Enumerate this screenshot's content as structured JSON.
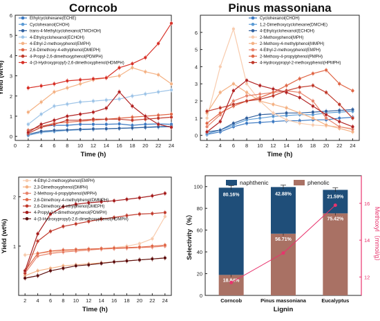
{
  "figure": {},
  "chart_data": [
    {
      "type": "line",
      "title": "Corncob",
      "xlabel": "Time (h)",
      "ylabel": "Yield (wt%)",
      "xlim": [
        0,
        24
      ],
      "ylim": [
        -0.2,
        6
      ],
      "x_ticks": [
        0,
        2,
        4,
        6,
        8,
        10,
        12,
        14,
        16,
        18,
        20,
        22,
        24
      ],
      "y_ticks": [
        0,
        1,
        2,
        3,
        4,
        5,
        6
      ],
      "x": [
        2,
        4,
        6,
        8,
        10,
        12,
        14,
        16,
        18,
        20,
        22,
        24
      ],
      "legend_position": "top-left",
      "series": [
        {
          "name": "Ethylcyclohexane(ECHE)",
          "color": "#3a78c2",
          "values": [
            0.3,
            0.5,
            0.55,
            0.55,
            0.6,
            0.6,
            0.6,
            0.62,
            0.55,
            0.6,
            0.62,
            0.6
          ]
        },
        {
          "name": "Cyclohexanol(CHOH)",
          "color": "#5b9bd5",
          "values": [
            0.05,
            0.2,
            0.25,
            0.3,
            0.33,
            0.35,
            0.38,
            0.4,
            0.42,
            0.44,
            0.46,
            0.48
          ]
        },
        {
          "name": "trans-4-Methylcyclohexanol(TMCHOH)",
          "color": "#2f5f9e",
          "values": [
            0.1,
            0.25,
            0.3,
            0.32,
            0.35,
            0.37,
            0.38,
            0.4,
            0.42,
            0.45,
            0.48,
            0.5
          ]
        },
        {
          "name": "4-Ethylcyclohexanol(ECHOH)",
          "color": "#9fc5e8",
          "values": [
            0.6,
            1.1,
            1.5,
            1.6,
            1.7,
            1.75,
            1.8,
            1.85,
            2.0,
            2.1,
            2.2,
            2.3
          ]
        },
        {
          "name": "4-Ethyl-2-methoxyphenol(EMPH)",
          "color": "#f4b183",
          "values": [
            1.2,
            1.7,
            2.2,
            2.4,
            2.6,
            2.8,
            2.9,
            3.0,
            3.4,
            3.2,
            3.05,
            2.6
          ]
        },
        {
          "name": "2,6-Dimethoxy-4-ethylphenol(DMEPH)",
          "color": "#e06646",
          "values": [
            0.3,
            0.5,
            0.65,
            0.7,
            0.75,
            0.8,
            0.85,
            0.9,
            0.95,
            1.0,
            1.05,
            1.1
          ]
        },
        {
          "name": "4-Propyl-2,6-dimethoxyphenol(PDMPH)",
          "color": "#c0392b",
          "values": [
            0.15,
            0.45,
            0.6,
            0.8,
            0.8,
            0.85,
            0.85,
            0.85,
            0.8,
            0.85,
            0.9,
            0.95
          ]
        },
        {
          "name": "4-(3-Hydroxypropyl)-2,6-dimethoxyphenol(HDMPH)",
          "color": "#d73027",
          "values": [
            2.4,
            2.5,
            2.6,
            2.75,
            2.8,
            2.85,
            2.9,
            3.4,
            3.6,
            3.9,
            4.6,
            5.6
          ]
        },
        {
          "name": "",
          "color": "#b22222",
          "values": [
            0.2,
            0.6,
            0.8,
            1.0,
            1.1,
            1.2,
            1.4,
            2.2,
            1.5,
            1.0,
            0.6,
            0.45
          ]
        }
      ]
    },
    {
      "type": "line",
      "title": "Pinus massoniana",
      "xlabel": "Time (h)",
      "ylabel": "",
      "xlim": [
        1,
        25
      ],
      "ylim": [
        -0.3,
        7
      ],
      "x_ticks": [
        2,
        4,
        6,
        8,
        10,
        12,
        14,
        16,
        18,
        20,
        22,
        24
      ],
      "y_ticks": [
        0,
        1,
        2,
        3,
        4,
        5,
        6
      ],
      "x": [
        2,
        4,
        6,
        8,
        10,
        12,
        14,
        16,
        18,
        20,
        22,
        24
      ],
      "legend_position": "top-right",
      "series": [
        {
          "name": "Cyclohexanol(CHOH)",
          "color": "#3a78c2",
          "values": [
            0.05,
            0.2,
            0.5,
            0.7,
            0.75,
            0.8,
            0.85,
            0.85,
            0.9,
            0.9,
            1.0,
            1.05
          ]
        },
        {
          "name": "1,2-Dimethoxycyclohexane(DMCHE)",
          "color": "#5b9bd5",
          "values": [
            0.1,
            0.3,
            0.6,
            0.9,
            1.0,
            1.1,
            1.15,
            1.2,
            1.2,
            1.3,
            1.35,
            1.4
          ]
        },
        {
          "name": "4-Ethylcyclohexanol(ECHOH)",
          "color": "#2f5f9e",
          "values": [
            0.2,
            0.3,
            0.7,
            1.0,
            1.2,
            1.25,
            1.3,
            1.3,
            1.35,
            1.4,
            1.45,
            1.5
          ]
        },
        {
          "name": "2-Methoxyphenol(MPH)",
          "color": "#f8cbad",
          "values": [
            1.0,
            4.0,
            6.2,
            3.0,
            2.0,
            1.3,
            0.9,
            0.7,
            0.6,
            0.55,
            0.5,
            0.4
          ]
        },
        {
          "name": "2-Methoxy-4-methylphenol(MMPH)",
          "color": "#f4b183",
          "values": [
            1.3,
            2.5,
            3.0,
            2.5,
            2.0,
            1.8,
            1.6,
            1.3,
            1.0,
            0.6,
            0.4,
            0.2
          ]
        },
        {
          "name": "4-Ethyl-2-methoxyphenol(EMPH)",
          "color": "#e8836b",
          "values": [
            0.5,
            1.2,
            2.0,
            2.3,
            2.4,
            2.5,
            2.6,
            2.5,
            2.0,
            1.0,
            0.5,
            0.35
          ]
        },
        {
          "name": "2-Methoxy-4-propylphenol(PMPH)",
          "color": "#e06646",
          "values": [
            0.7,
            1.3,
            1.7,
            2.0,
            2.2,
            2.5,
            2.9,
            3.3,
            3.6,
            3.8,
            3.0,
            2.6
          ]
        },
        {
          "name": "4-Hydroxypropyl-2-methoxyphenol(HPMPH)",
          "color": "#c0392b",
          "values": [
            1.4,
            1.6,
            1.8,
            2.0,
            2.1,
            2.3,
            2.6,
            2.8,
            2.9,
            2.5,
            1.8,
            1.0
          ]
        },
        {
          "name": "",
          "color": "#b22222",
          "values": [
            0.2,
            0.8,
            2.6,
            3.2,
            2.9,
            2.7,
            2.5,
            2.2,
            1.7,
            1.2,
            0.8,
            0.5
          ]
        }
      ]
    },
    {
      "type": "line",
      "title": "",
      "xlabel": "Time (h)",
      "ylabel": "Yield (wt%)",
      "xlim": [
        1,
        25
      ],
      "ylim": [
        0,
        2.4
      ],
      "x_ticks": [
        2,
        4,
        6,
        8,
        10,
        12,
        14,
        16,
        18,
        20,
        22,
        24
      ],
      "y_ticks": [
        1,
        2
      ],
      "x": [
        2,
        4,
        6,
        8,
        10,
        12,
        14,
        16,
        18,
        20,
        22,
        24
      ],
      "legend_position": "top-left",
      "series": [
        {
          "name": "4-Ethyl-2-methoxyphenol(EMPH)",
          "color": "#f8cbad",
          "values": [
            0.82,
            0.85,
            0.88,
            0.9,
            0.92,
            0.93,
            0.95,
            0.97,
            1.0,
            1.05,
            1.15,
            1.6
          ]
        },
        {
          "name": "2,3-Dimethoxyphenol(DMPH)",
          "color": "#f4b183",
          "values": [
            0.4,
            0.5,
            0.55,
            0.6,
            0.62,
            0.64,
            0.66,
            0.68,
            0.7,
            0.72,
            0.74,
            0.76
          ]
        },
        {
          "name": "2-Methoxy-4-propylphenol(MPPH)",
          "color": "#e8836b",
          "values": [
            0.45,
            0.8,
            0.85,
            0.88,
            0.9,
            0.92,
            0.94,
            0.95,
            0.96,
            0.97,
            0.98,
            1.0
          ]
        },
        {
          "name": "2,6-Dimethoxy-4-methylphenol(DMMPH)",
          "color": "#e06646",
          "values": [
            0.5,
            0.85,
            0.9,
            0.92,
            0.93,
            0.94,
            0.95,
            0.96,
            0.97,
            0.98,
            1.0,
            1.02
          ]
        },
        {
          "name": "2,6-Dimethoxy-4-ethylphenol(DMEPH)",
          "color": "#c0392b",
          "values": [
            0.45,
            1.1,
            1.3,
            1.4,
            1.45,
            1.5,
            1.55,
            1.58,
            1.62,
            1.65,
            1.66,
            1.68
          ]
        },
        {
          "name": "4-Propyl-2,6-dimethoxyphenol(PDMPH)",
          "color": "#a51c1c",
          "values": [
            0.5,
            1.25,
            1.65,
            1.8,
            1.85,
            1.88,
            1.9,
            1.92,
            1.95,
            1.98,
            2.02,
            2.07
          ]
        },
        {
          "name": "4-(3-Hydroxypropyl)-2,6-dimethoxyphenol(HDMPH)",
          "color": "#5c0e0e",
          "values": [
            0.35,
            0.4,
            0.5,
            0.55,
            0.6,
            0.62,
            0.65,
            0.68,
            0.7,
            0.72,
            0.74,
            0.76
          ]
        }
      ]
    },
    {
      "type": "bar",
      "stacked": true,
      "title": "",
      "xlabel": "Lignin",
      "ylabel": "Selectivity（%）",
      "y2label": "Methoxyl（mmol/g）",
      "ylim": [
        0,
        110
      ],
      "y_ticks": [
        0,
        20,
        40,
        60,
        80,
        100
      ],
      "y2lim": [
        11,
        17.5
      ],
      "y2_ticks": [
        12,
        14,
        16
      ],
      "categories": [
        "Corncob",
        "Pinus massoniana",
        "Eucalyptus"
      ],
      "legend_position": "top",
      "series": [
        {
          "name": "naphthenic",
          "color": "#1f4e79",
          "values": [
            80.16,
            42.88,
            21.59
          ],
          "labels": [
            "80.16%",
            "42.88%",
            "21.59%"
          ]
        },
        {
          "name": "phenolic",
          "color": "#a97164",
          "values": [
            18.84,
            56.71,
            75.42
          ],
          "labels": [
            "18.84%",
            "56.71%",
            "75.42%"
          ]
        }
      ],
      "line": {
        "color": "#e8336d",
        "values": [
          11.7,
          13.3,
          15.9
        ]
      }
    }
  ]
}
